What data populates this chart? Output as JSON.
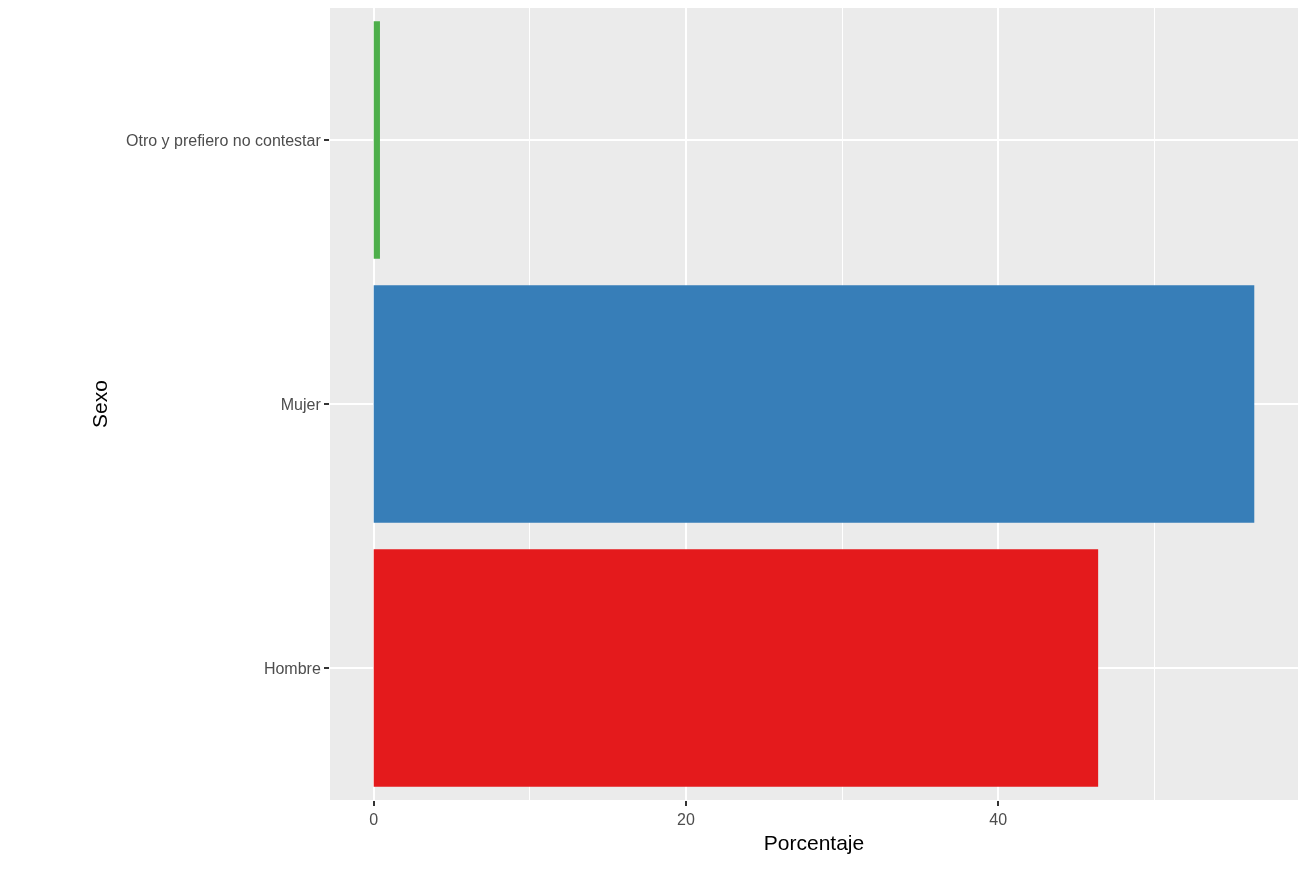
{
  "chart_data": {
    "type": "bar",
    "orientation": "horizontal",
    "xlabel": "Porcentaje",
    "ylabel": "Sexo",
    "categories": [
      "Otro y prefiero no contestar",
      "Mujer",
      "Hombre"
    ],
    "values": [
      0.4,
      56.4,
      46.4
    ],
    "colors": [
      "#4daf4a",
      "#377eb8",
      "#e41a1c"
    ],
    "xlim": [
      -2.8,
      59.2
    ],
    "xticks": [
      0,
      20,
      40
    ],
    "grid": true
  }
}
